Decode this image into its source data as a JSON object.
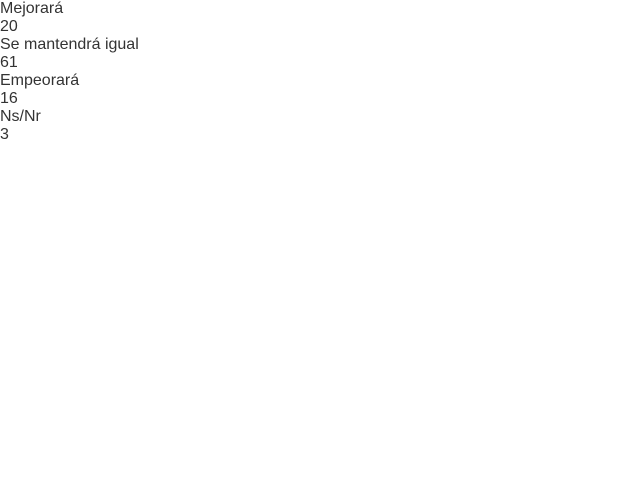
{
  "chart_data": {
    "type": "bar",
    "orientation": "horizontal",
    "categories": [
      "Mejorará",
      "Se mantendrá igual",
      "Empeorará",
      "Ns/Nr"
    ],
    "values": [
      20,
      61,
      16,
      3
    ],
    "colors": [
      "#76923c",
      "#ffc000",
      "#c00000",
      "#808080"
    ]
  }
}
